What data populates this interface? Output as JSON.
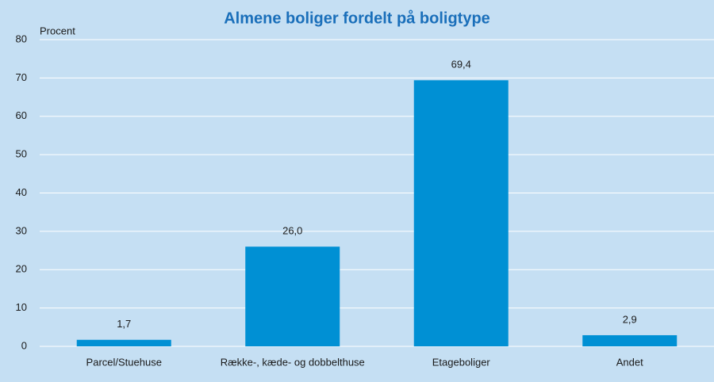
{
  "chart_data": {
    "type": "bar",
    "title": "Almene boliger fordelt på boligtype",
    "y_label": "Procent",
    "categories": [
      "Parcel/Stuehuse",
      "Række-, kæde- og dobbelthuse",
      "Etageboliger",
      "Andet"
    ],
    "values": [
      1.7,
      26.0,
      69.4,
      2.9
    ],
    "value_labels": [
      "1,7",
      "26,0",
      "69,4",
      "2,9"
    ],
    "color": "#0090d4",
    "ylim": [
      0,
      80
    ],
    "yticks": [
      0,
      10,
      20,
      30,
      40,
      50,
      60,
      70,
      80
    ],
    "grid": true
  }
}
